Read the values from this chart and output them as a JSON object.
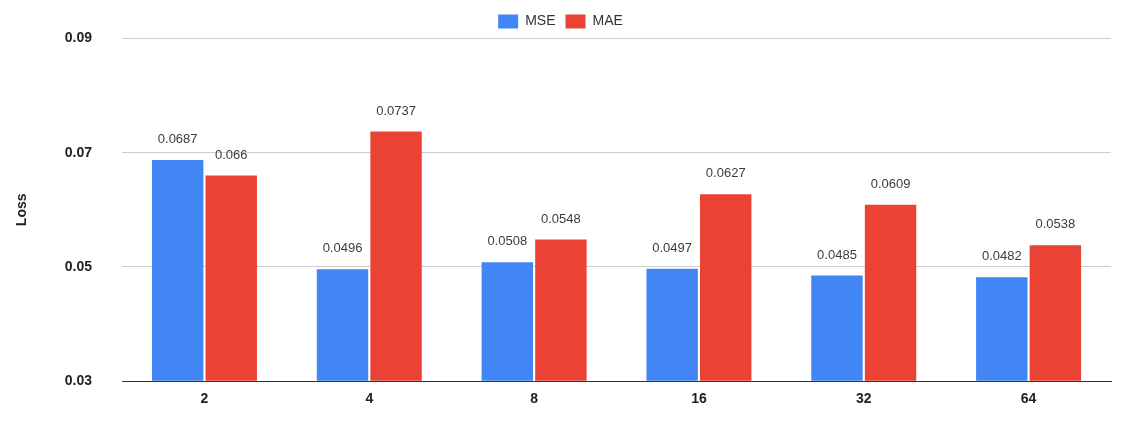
{
  "chart_data": {
    "type": "bar",
    "ylabel": "Loss",
    "categories": [
      "2",
      "4",
      "8",
      "16",
      "32",
      "64"
    ],
    "series": [
      {
        "name": "MSE",
        "color": "#4285f4",
        "values": [
          0.0687,
          0.0496,
          0.0508,
          0.0497,
          0.0485,
          0.0482
        ]
      },
      {
        "name": "MAE",
        "color": "#ea4335",
        "values": [
          0.066,
          0.0737,
          0.0548,
          0.0627,
          0.0609,
          0.0538
        ]
      }
    ],
    "ylim": [
      0.03,
      0.09
    ],
    "yticks": [
      0.03,
      0.05,
      0.07,
      0.09
    ],
    "grid": "y",
    "legend": "top",
    "data_labels": true
  }
}
